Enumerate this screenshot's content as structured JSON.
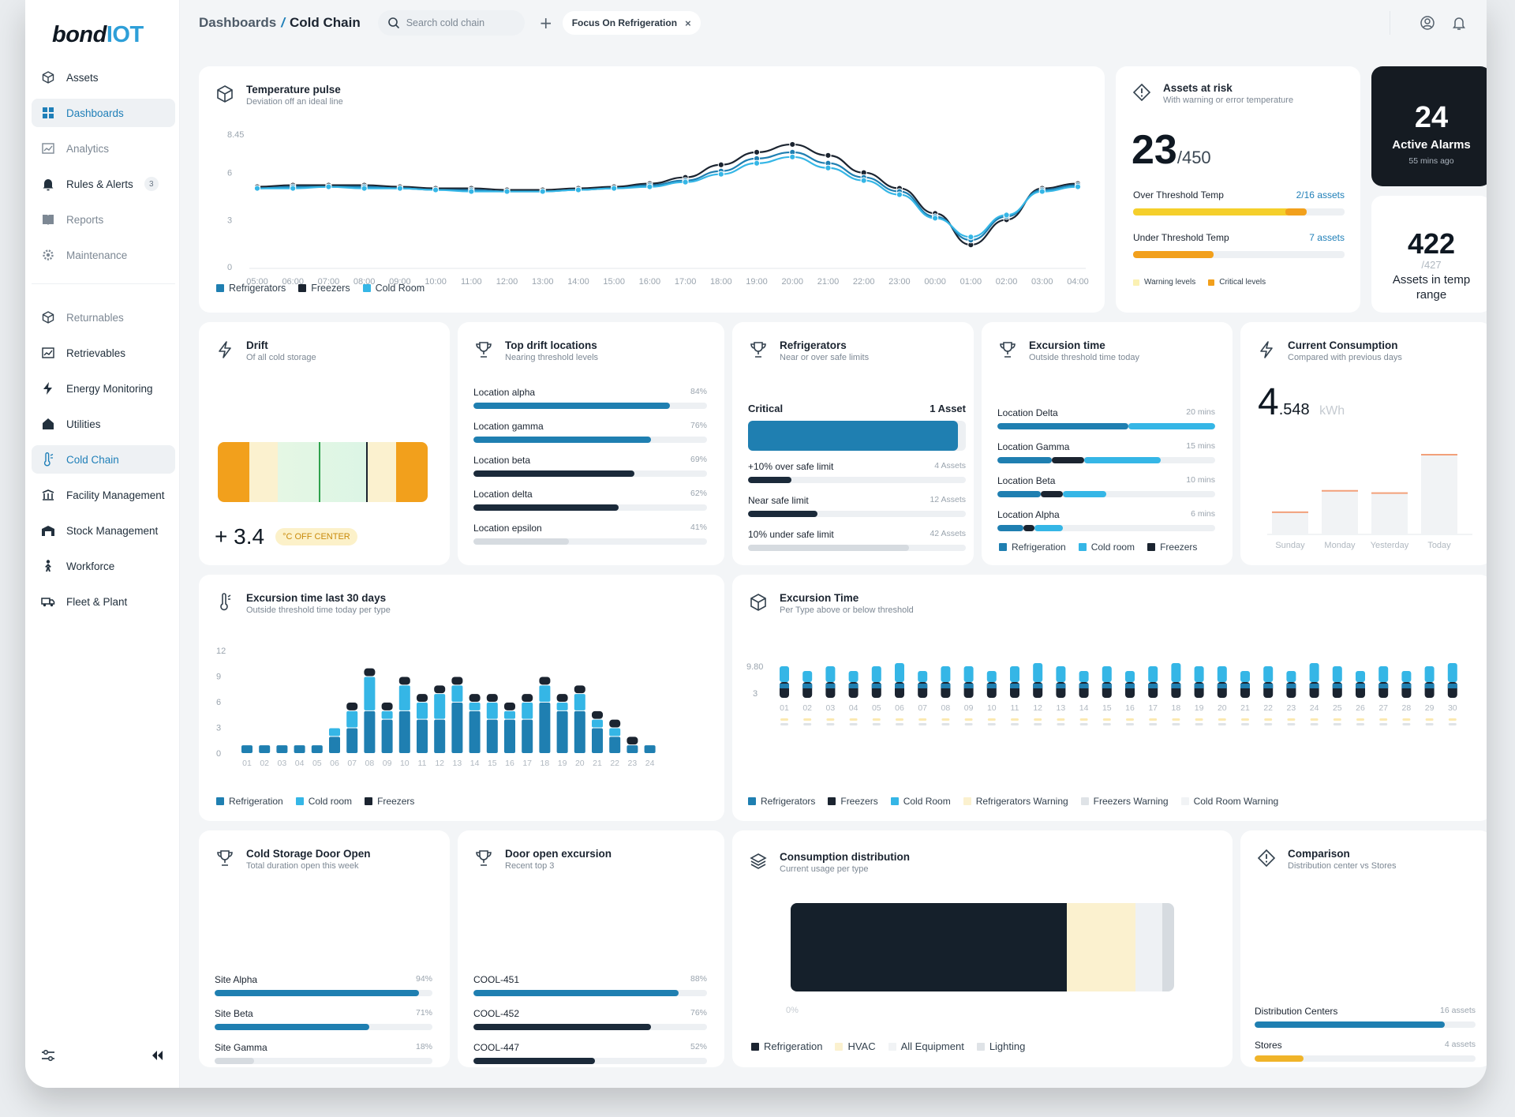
{
  "brand": {
    "part1": "bond",
    "part2": "IOT"
  },
  "sidebar": {
    "items": [
      {
        "label": "Assets",
        "icon": "cube-icon"
      },
      {
        "label": "Dashboards",
        "icon": "grid-icon",
        "active": true
      },
      {
        "label": "Analytics",
        "icon": "analytics-icon"
      },
      {
        "label": "Rules & Alerts",
        "icon": "bell-icon",
        "badge": "3"
      },
      {
        "label": "Reports",
        "icon": "book-icon"
      },
      {
        "label": "Maintenance",
        "icon": "gear-icon"
      }
    ],
    "items2": [
      {
        "label": "Returnables",
        "icon": "cube-icon"
      },
      {
        "label": "Retrievables",
        "icon": "chart-icon"
      },
      {
        "label": "Energy Monitoring",
        "icon": "bolt-icon"
      },
      {
        "label": "Utilities",
        "icon": "house-icon"
      },
      {
        "label": "Cold Chain",
        "icon": "thermometer-icon",
        "active": true
      },
      {
        "label": "Facility Management",
        "icon": "facility-icon"
      },
      {
        "label": "Stock Management",
        "icon": "warehouse-icon"
      },
      {
        "label": "Workforce",
        "icon": "person-icon"
      },
      {
        "label": "Fleet & Plant",
        "icon": "truck-icon"
      }
    ]
  },
  "topbar": {
    "crumb_parent": "Dashboards",
    "crumb_sep": "/",
    "crumb_current": "Cold Chain",
    "search_placeholder": "Search cold chain",
    "add_label": "+",
    "filter_chip": "Focus On Refrigeration",
    "filter_close": "×"
  },
  "temperature_pulse": {
    "title": "Temperature pulse",
    "subtitle": "Deviation off an ideal line",
    "legend": [
      "Refrigerators",
      "Freezers",
      "Cold Room"
    ]
  },
  "assets_at_risk": {
    "title": "Assets at risk",
    "subtitle": "With warning or error temperature",
    "count": "23",
    "total": "/450",
    "over_label": "Over Threshold Temp",
    "over_value": "2/16 assets",
    "over_warning_fraction": 0.74,
    "over_critical_fraction": 0.1,
    "under_label": "Under Threshold Temp",
    "under_value": "7 assets",
    "under_critical_fraction": 0.38,
    "legend_warning": "Warning levels",
    "legend_critical": "Critical levels"
  },
  "active_alarms": {
    "count": "24",
    "label": "Active Alarms",
    "time": "55 mins ago"
  },
  "temp_range": {
    "count": "422",
    "total": "/427",
    "label": "Assets in temp range"
  },
  "drift": {
    "title": "Drift",
    "subtitle": "Of all cold storage",
    "value": "+ 3.4",
    "badge": "°C OFF CENTER"
  },
  "top_drift": {
    "title": "Top drift locations",
    "subtitle": "Nearing threshold levels",
    "rows": [
      {
        "label": "Location alpha",
        "value": "84%",
        "pct": 84,
        "color": "#1f7fb1"
      },
      {
        "label": "Location gamma",
        "value": "76%",
        "pct": 76,
        "color": "#1f7fb1"
      },
      {
        "label": "Location beta",
        "value": "69%",
        "pct": 69,
        "color": "#1b2a3a"
      },
      {
        "label": "Location delta",
        "value": "62%",
        "pct": 62,
        "color": "#1b2a3a"
      },
      {
        "label": "Location epsilon",
        "value": "41%",
        "pct": 41,
        "color": "#d6dbe0"
      }
    ]
  },
  "refrigerators": {
    "title": "Refrigerators",
    "subtitle": "Near or over safe limits",
    "critical_label": "Critical",
    "critical_value": "1 Asset",
    "rows": [
      {
        "label": "+10% over safe limit",
        "value": "4 Assets",
        "pct": 20,
        "color": "#1b2a3a"
      },
      {
        "label": "Near safe limit",
        "value": "12 Assets",
        "pct": 32,
        "color": "#1b2a3a"
      },
      {
        "label": "10% under safe limit",
        "value": "42 Assets",
        "pct": 74,
        "color": "#d6dbe0"
      }
    ]
  },
  "excursion_time_today": {
    "title": "Excursion time",
    "subtitle": "Outside threshold time today",
    "rows": [
      {
        "label": "Location Delta",
        "value": "20 mins",
        "segs": [
          60,
          0,
          40
        ]
      },
      {
        "label": "Location Gamma",
        "value": "15 mins",
        "segs": [
          25,
          15,
          35
        ]
      },
      {
        "label": "Location Beta",
        "value": "10 mins",
        "segs": [
          20,
          10,
          20
        ]
      },
      {
        "label": "Location Alpha",
        "value": "6 mins",
        "segs": [
          12,
          5,
          13
        ]
      }
    ],
    "legend": [
      "Refrigeration",
      "Cold room",
      "Freezers"
    ]
  },
  "current_consumption": {
    "title": "Current Consumption",
    "subtitle": "Compared with previous days",
    "value_int": "4",
    "value_dec": ".548",
    "unit": "kWh",
    "chart_data": {
      "type": "bar",
      "categories": [
        "Sunday",
        "Monday",
        "Yesterday",
        "Today"
      ],
      "values": [
        1.9,
        3.8,
        3.6,
        7.0
      ]
    }
  },
  "excursion_30": {
    "title": "Excursion time last 30 days",
    "subtitle": "Outside threshold time today per type",
    "legend": [
      "Refrigeration",
      "Cold room",
      "Freezers"
    ],
    "chart_data": {
      "type": "bar",
      "categories": [
        "01",
        "02",
        "03",
        "04",
        "05",
        "06",
        "07",
        "08",
        "09",
        "10",
        "11",
        "12",
        "13",
        "14",
        "15",
        "16",
        "17",
        "18",
        "19",
        "20",
        "21",
        "22",
        "23",
        "24"
      ],
      "y_ticks": [
        "12",
        "9",
        "6",
        "3",
        "0"
      ],
      "ylim": [
        0,
        12
      ],
      "series": [
        {
          "name": "Refrigeration",
          "values": [
            1,
            1,
            1,
            1,
            1,
            2,
            3,
            5,
            4,
            5,
            4,
            4,
            6,
            5,
            4,
            4,
            4,
            6,
            5,
            5,
            3,
            2,
            1,
            1
          ]
        },
        {
          "name": "Cold room",
          "values": [
            0,
            0,
            0,
            0,
            0,
            1,
            2,
            4,
            1,
            3,
            2,
            3,
            2,
            1,
            2,
            1,
            2,
            2,
            1,
            2,
            1,
            1,
            0,
            0
          ]
        },
        {
          "name": "Freezers",
          "values": [
            0,
            0,
            0,
            0,
            0,
            0,
            1,
            1,
            1,
            1,
            1,
            1,
            1,
            1,
            1,
            1,
            1,
            1,
            1,
            1,
            1,
            1,
            1,
            0
          ]
        }
      ]
    }
  },
  "excursion_type": {
    "title": "Excursion Time",
    "subtitle": "Per Type above or below threshold",
    "y_ticks": [
      "9.80",
      "3"
    ],
    "categories": [
      "01",
      "02",
      "03",
      "04",
      "05",
      "06",
      "07",
      "08",
      "09",
      "10",
      "11",
      "12",
      "13",
      "14",
      "15",
      "16",
      "17",
      "18",
      "19",
      "20",
      "21",
      "22",
      "23",
      "24",
      "25",
      "26",
      "27",
      "28",
      "29",
      "30"
    ],
    "legend": [
      "Refrigerators",
      "Freezers",
      "Cold Room",
      "Refrigerators Warning",
      "Freezers Warning",
      "Cold Room Warning"
    ]
  },
  "door_open": {
    "title": "Cold Storage Door Open",
    "subtitle": "Total duration open this week",
    "rows": [
      {
        "label": "Site Alpha",
        "value": "94%",
        "pct": 94,
        "color": "#1f7fb1"
      },
      {
        "label": "Site Beta",
        "value": "71%",
        "pct": 71,
        "color": "#1f7fb1"
      },
      {
        "label": "Site Gamma",
        "value": "18%",
        "pct": 18,
        "color": "#d6dbe0"
      }
    ]
  },
  "door_excursion": {
    "title": "Door open excursion",
    "subtitle": "Recent top 3",
    "rows": [
      {
        "label": "COOL-451",
        "value": "88%",
        "pct": 88,
        "color": "#1f7fb1"
      },
      {
        "label": "COOL-452",
        "value": "76%",
        "pct": 76,
        "color": "#1b2a3a"
      },
      {
        "label": "COOL-447",
        "value": "52%",
        "pct": 52,
        "color": "#1b2a3a"
      }
    ]
  },
  "consumption_dist": {
    "title": "Consumption distribution",
    "subtitle": "Current usage per type",
    "axis_zero": "0%",
    "legend": [
      "Refrigeration",
      "HVAC",
      "All Equipment",
      "Lighting"
    ],
    "segments": [
      72,
      18,
      7,
      3
    ]
  },
  "comparison": {
    "title": "Comparison",
    "subtitle": "Distribution center vs Stores",
    "rows": [
      {
        "label": "Distribution Centers",
        "value": "16 assets",
        "pct": 86,
        "color": "#1f7fb1"
      },
      {
        "label": "Stores",
        "value": "4 assets",
        "pct": 22,
        "color": "#f0b429"
      }
    ]
  },
  "pulse_chart": {
    "chart_data": {
      "type": "line",
      "x": [
        "05:00",
        "06:00",
        "07:00",
        "08:00",
        "09:00",
        "10:00",
        "11:00",
        "12:00",
        "13:00",
        "14:00",
        "15:00",
        "16:00",
        "17:00",
        "18:00",
        "19:00",
        "20:00",
        "21:00",
        "22:00",
        "23:00",
        "00:00",
        "01:00",
        "02:00",
        "03:00",
        "04:00"
      ],
      "y_ticks": [
        "8.45",
        "6",
        "3",
        "0"
      ],
      "ylim": [
        0,
        8.45
      ],
      "series": [
        {
          "name": "Refrigerators",
          "values": [
            5.0,
            5.1,
            5.1,
            5.1,
            5.0,
            4.9,
            4.9,
            4.8,
            4.8,
            4.9,
            5.0,
            5.2,
            5.5,
            6.1,
            6.9,
            7.3,
            6.6,
            5.7,
            4.8,
            3.2,
            1.7,
            3.2,
            4.9,
            5.2
          ]
        },
        {
          "name": "Freezers",
          "values": [
            5.1,
            5.2,
            5.2,
            5.2,
            5.1,
            5.0,
            5.0,
            4.9,
            4.9,
            5.0,
            5.1,
            5.3,
            5.7,
            6.5,
            7.3,
            7.8,
            7.1,
            6.0,
            5.0,
            3.4,
            1.4,
            3.0,
            5.0,
            5.3
          ]
        },
        {
          "name": "Cold Room",
          "values": [
            5.0,
            5.0,
            5.1,
            5.0,
            5.0,
            4.9,
            4.8,
            4.8,
            4.8,
            4.9,
            5.0,
            5.1,
            5.4,
            5.9,
            6.6,
            7.0,
            6.3,
            5.5,
            4.6,
            3.1,
            1.9,
            3.3,
            4.8,
            5.1
          ]
        }
      ]
    }
  }
}
